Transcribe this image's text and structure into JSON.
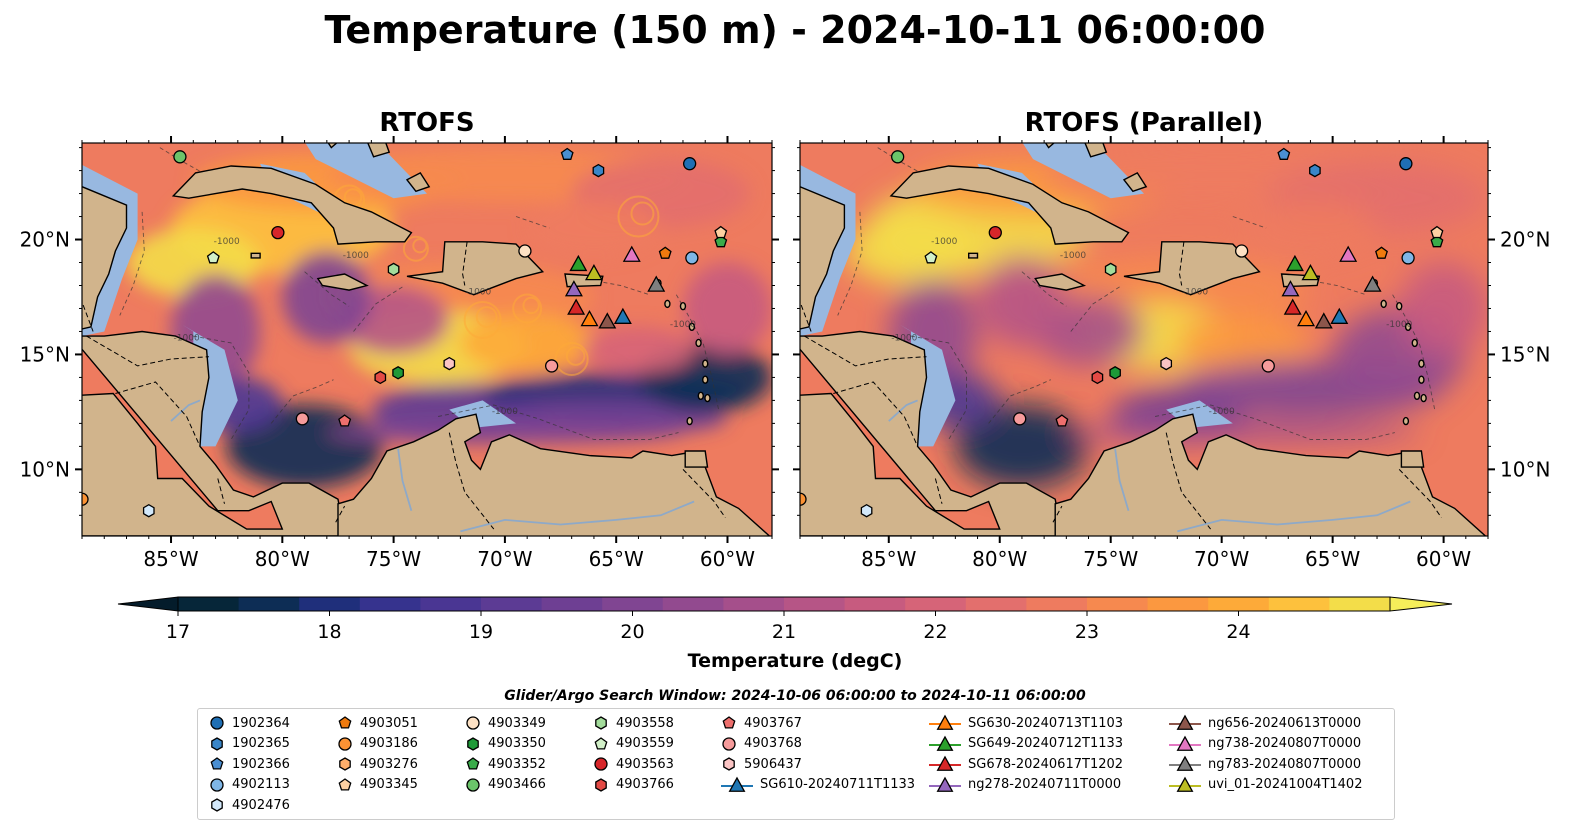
{
  "title": "Temperature (150 m) - 2024-10-11 06:00:00",
  "panels": [
    {
      "title": "RTOFS"
    },
    {
      "title": "RTOFS (Parallel)"
    }
  ],
  "axes": {
    "lon_ticks": [
      "85°W",
      "80°W",
      "75°W",
      "70°W",
      "65°W",
      "60°W"
    ],
    "lat_ticks": [
      "20°N",
      "15°N",
      "10°N"
    ]
  },
  "colorbar": {
    "label": "Temperature (degC)",
    "ticks": [
      "17",
      "18",
      "19",
      "20",
      "21",
      "22",
      "23",
      "24"
    ],
    "colors": [
      "#062639",
      "#0d2d55",
      "#1f2f7b",
      "#36338e",
      "#4a3693",
      "#5c3b94",
      "#6e3f93",
      "#804592",
      "#924a8f",
      "#a54f8b",
      "#b65586",
      "#c75b7f",
      "#d66478",
      "#e36f6d",
      "#ee7b5f",
      "#f6894f",
      "#fb9840",
      "#fdaa39",
      "#fdc13d",
      "#f3dd49"
    ],
    "extend_low": "#041c2b",
    "extend_high": "#f5ee5a"
  },
  "contour_label": "-1000",
  "search_window": "Glider/Argo Search Window: 2024-10-06 06:00:00 to 2024-10-11 06:00:00",
  "legend": [
    {
      "label": "1902364",
      "marker": "circle",
      "color": "#1f6fb4"
    },
    {
      "label": "1902365",
      "marker": "hexagon",
      "color": "#3a86c8"
    },
    {
      "label": "1902366",
      "marker": "pentagon",
      "color": "#4a8fd2"
    },
    {
      "label": "4902113",
      "marker": "circle",
      "color": "#7fb6e6"
    },
    {
      "label": "4902476",
      "marker": "hexagon",
      "color": "#d2e8fa"
    },
    {
      "label": "4903051",
      "marker": "pentagon",
      "color": "#ef7a0e"
    },
    {
      "label": "4903186",
      "marker": "circle",
      "color": "#fb9234"
    },
    {
      "label": "4903276",
      "marker": "hexagon",
      "color": "#fdae6b"
    },
    {
      "label": "4903345",
      "marker": "pentagon",
      "color": "#fdd0a2"
    },
    {
      "label": "4903349",
      "marker": "circle",
      "color": "#fde1c4"
    },
    {
      "label": "4903350",
      "marker": "hexagon",
      "color": "#1e9a38"
    },
    {
      "label": "4903352",
      "marker": "pentagon",
      "color": "#3aab4a"
    },
    {
      "label": "4903466",
      "marker": "circle",
      "color": "#6bc46a"
    },
    {
      "label": "4903558",
      "marker": "hexagon",
      "color": "#a3dc9b"
    },
    {
      "label": "4903559",
      "marker": "pentagon",
      "color": "#d2f0c8"
    },
    {
      "label": "4903563",
      "marker": "circle",
      "color": "#d7262a"
    },
    {
      "label": "4903766",
      "marker": "hexagon",
      "color": "#e34a45"
    },
    {
      "label": "4903767",
      "marker": "pentagon",
      "color": "#ee6f6d"
    },
    {
      "label": "4903768",
      "marker": "circle",
      "color": "#f69b9b"
    },
    {
      "label": "5906437",
      "marker": "hexagon",
      "color": "#fbc4c4"
    },
    {
      "label": "SG610-20240711T1133",
      "marker": "triangle-line",
      "color": "#1f77b4"
    },
    {
      "label": "SG630-20240713T1103",
      "marker": "triangle-line",
      "color": "#ff7f0e"
    },
    {
      "label": "SG649-20240712T1133",
      "marker": "triangle-line",
      "color": "#2ca02c"
    },
    {
      "label": "SG678-20240617T1202",
      "marker": "triangle-line",
      "color": "#d62728"
    },
    {
      "label": "ng278-20240711T0000",
      "marker": "triangle-line",
      "color": "#9467bd"
    },
    {
      "label": "ng656-20240613T0000",
      "marker": "triangle-line",
      "color": "#8c564b"
    },
    {
      "label": "ng738-20240807T0000",
      "marker": "triangle-line",
      "color": "#e377c2"
    },
    {
      "label": "ng783-20240807T0000",
      "marker": "triangle-line",
      "color": "#7f7f7f"
    },
    {
      "label": "uvi_01-20241004T1402",
      "marker": "triangle-line",
      "color": "#bcbd22"
    }
  ],
  "map_colors": {
    "land": "#d1b48c",
    "shelf": "#98b8e0",
    "deep_pacific": "#041c2b",
    "coast": "#000000",
    "river": "#8ea9c8"
  },
  "argo_positions": [
    {
      "id": "4903466",
      "lon": -84.6,
      "lat": 23.6
    },
    {
      "id": "4903563",
      "lon": -80.2,
      "lat": 20.3
    },
    {
      "id": "1902366",
      "lon": -67.2,
      "lat": 23.7
    },
    {
      "id": "1902365",
      "lon": -65.8,
      "lat": 23.0
    },
    {
      "id": "1902364",
      "lon": -61.7,
      "lat": 23.3
    },
    {
      "id": "4903559",
      "lon": -83.1,
      "lat": 19.2
    },
    {
      "id": "4903558",
      "lon": -75.0,
      "lat": 18.7
    },
    {
      "id": "4903349",
      "lon": -69.1,
      "lat": 19.5
    },
    {
      "id": "4903051",
      "lon": -62.8,
      "lat": 19.4
    },
    {
      "id": "4902113",
      "lon": -61.6,
      "lat": 19.2
    },
    {
      "id": "4903352",
      "lon": -60.3,
      "lat": 19.9
    },
    {
      "id": "4903345",
      "lon": -60.3,
      "lat": 20.3
    },
    {
      "id": "4903766",
      "lon": -75.6,
      "lat": 14.0
    },
    {
      "id": "4903350",
      "lon": -74.8,
      "lat": 14.2
    },
    {
      "id": "5906437",
      "lon": -72.5,
      "lat": 14.6
    },
    {
      "id": "4903768",
      "lon": -67.9,
      "lat": 14.5
    },
    {
      "id": "4903767",
      "lon": -77.2,
      "lat": 12.1
    },
    {
      "id": "4903768",
      "lon": -79.1,
      "lat": 12.2
    },
    {
      "id": "4903186",
      "lon": -89.0,
      "lat": 8.7
    },
    {
      "id": "4902476",
      "lon": -86.0,
      "lat": 8.2
    }
  ],
  "glider_positions": [
    {
      "id": "SG649-20240712T1133",
      "lon": -66.7,
      "lat": 18.9
    },
    {
      "id": "uvi_01-20241004T1402",
      "lon": -66.0,
      "lat": 18.5
    },
    {
      "id": "ng738-20240807T0000",
      "lon": -64.3,
      "lat": 19.3
    },
    {
      "id": "ng278-20240711T0000",
      "lon": -66.9,
      "lat": 17.8
    },
    {
      "id": "ng783-20240807T0000",
      "lon": -63.2,
      "lat": 18.0
    },
    {
      "id": "SG678-20240617T1202",
      "lon": -66.8,
      "lat": 17.0
    },
    {
      "id": "SG630-20240713T1103",
      "lon": -66.2,
      "lat": 16.5
    },
    {
      "id": "ng656-20240613T0000",
      "lon": -65.4,
      "lat": 16.4
    },
    {
      "id": "SG610-20240711T1133",
      "lon": -64.7,
      "lat": 16.6
    }
  ]
}
